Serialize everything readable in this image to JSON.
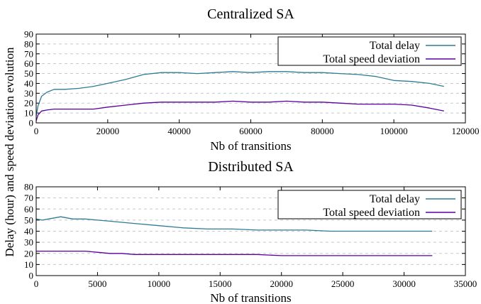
{
  "figure": {
    "shared_ylabel": "Delay (hour) and speed deviation evolution"
  },
  "chart_data": [
    {
      "type": "line",
      "title": "Centralized SA",
      "xlabel": "Nb of transitions",
      "ylabel": "",
      "xlim": [
        0,
        120000
      ],
      "ylim": [
        0,
        90
      ],
      "xticks": [
        0,
        20000,
        40000,
        60000,
        80000,
        100000,
        120000
      ],
      "yticks": [
        0,
        10,
        20,
        30,
        40,
        50,
        60,
        70,
        80,
        90
      ],
      "grid": true,
      "legend_position": "top-right",
      "series": [
        {
          "name": "Total delay",
          "color": "#2e7b96",
          "x": [
            0,
            500,
            1500,
            3000,
            5000,
            8000,
            12000,
            16000,
            20000,
            25000,
            30000,
            35000,
            40000,
            45000,
            50000,
            55000,
            60000,
            65000,
            70000,
            75000,
            80000,
            85000,
            90000,
            95000,
            100000,
            105000,
            110000,
            114000
          ],
          "y": [
            7,
            17,
            27,
            31,
            34,
            34,
            35,
            37,
            40,
            44,
            49,
            51,
            51,
            50,
            51,
            52,
            51,
            52,
            52,
            51,
            51,
            50,
            49,
            47,
            43,
            42,
            40,
            37
          ]
        },
        {
          "name": "Total speed deviation",
          "color": "#5a00a0",
          "x": [
            0,
            500,
            1500,
            3000,
            5000,
            8000,
            12000,
            16000,
            20000,
            25000,
            30000,
            35000,
            40000,
            45000,
            50000,
            55000,
            60000,
            65000,
            70000,
            75000,
            80000,
            85000,
            90000,
            95000,
            100000,
            105000,
            110000,
            114000
          ],
          "y": [
            2,
            8,
            12,
            13,
            14,
            14,
            14,
            14,
            16,
            18,
            20,
            21,
            21,
            21,
            21,
            22,
            21,
            21,
            22,
            21,
            21,
            20,
            19,
            19,
            19,
            18,
            15,
            12
          ]
        }
      ]
    },
    {
      "type": "line",
      "title": "Distributed SA",
      "xlabel": "Nb of transitions",
      "ylabel": "",
      "xlim": [
        0,
        35000
      ],
      "ylim": [
        0,
        80
      ],
      "xticks": [
        0,
        5000,
        10000,
        15000,
        20000,
        25000,
        30000,
        35000
      ],
      "yticks": [
        0,
        10,
        20,
        30,
        40,
        50,
        60,
        70,
        80
      ],
      "grid": true,
      "legend_position": "top-right",
      "series": [
        {
          "name": "Total delay",
          "color": "#2e7b96",
          "x": [
            0,
            500,
            1000,
            2000,
            3000,
            4000,
            5000,
            6000,
            7000,
            8000,
            10000,
            12000,
            14000,
            16000,
            18000,
            20000,
            22000,
            24000,
            26000,
            28000,
            30000,
            32300
          ],
          "y": [
            51,
            50,
            51,
            53,
            51,
            51,
            50,
            49,
            48,
            47,
            45,
            43,
            42,
            42,
            41,
            41,
            41,
            40,
            40,
            40,
            40,
            40
          ]
        },
        {
          "name": "Total speed deviation",
          "color": "#5a00a0",
          "x": [
            0,
            500,
            1000,
            2000,
            3000,
            4000,
            5000,
            6000,
            7000,
            8000,
            10000,
            12000,
            14000,
            16000,
            18000,
            20000,
            22000,
            24000,
            26000,
            28000,
            30000,
            32300
          ],
          "y": [
            22,
            22,
            22,
            22,
            22,
            22,
            21,
            20,
            20,
            19,
            19,
            19,
            19,
            19,
            19,
            18,
            18,
            18,
            18,
            18,
            18,
            18
          ]
        }
      ]
    }
  ]
}
